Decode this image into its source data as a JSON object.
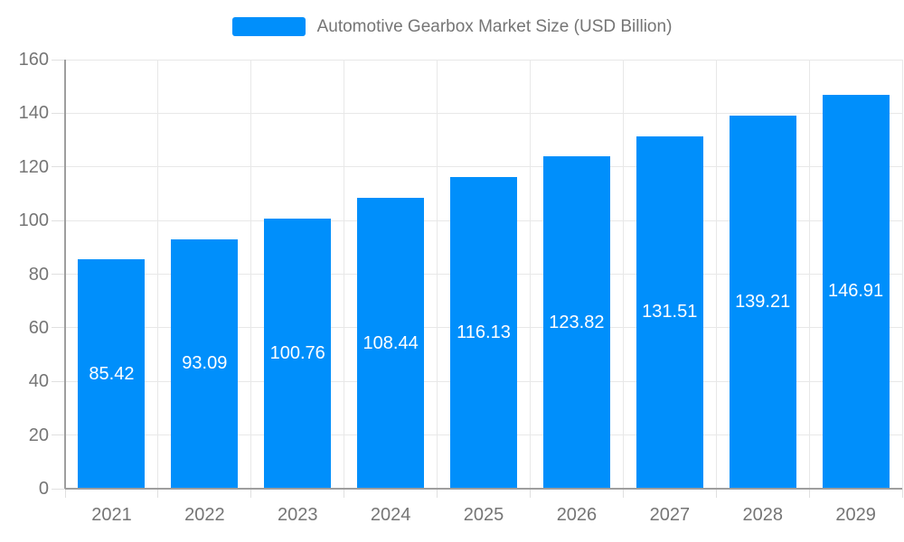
{
  "chart_data": {
    "type": "bar",
    "title": "Automotive Gearbox Market Size (USD Billion)",
    "categories": [
      "2021",
      "2022",
      "2023",
      "2024",
      "2025",
      "2026",
      "2027",
      "2028",
      "2029"
    ],
    "values": [
      85.42,
      93.09,
      100.76,
      108.44,
      116.13,
      123.82,
      131.51,
      139.21,
      146.91
    ],
    "value_labels": [
      "85.42",
      "93.09",
      "100.76",
      "108.44",
      "116.13",
      "123.82",
      "131.51",
      "139.21",
      "146.91"
    ],
    "ylim": [
      0,
      160
    ],
    "yticks": [
      "0",
      "20",
      "40",
      "60",
      "80",
      "100",
      "120",
      "140",
      "160"
    ],
    "grid": "horizontal-and-vertical",
    "legend_position": "top",
    "value_label_position": "center-inside-bar",
    "colors": {
      "bar": "#008FFB",
      "axis": "#9e9e9e",
      "grid": "#e8e8e8",
      "tick": "#e0e0e0",
      "label": "#757575",
      "value_label": "#ffffff",
      "background": "#ffffff"
    }
  }
}
